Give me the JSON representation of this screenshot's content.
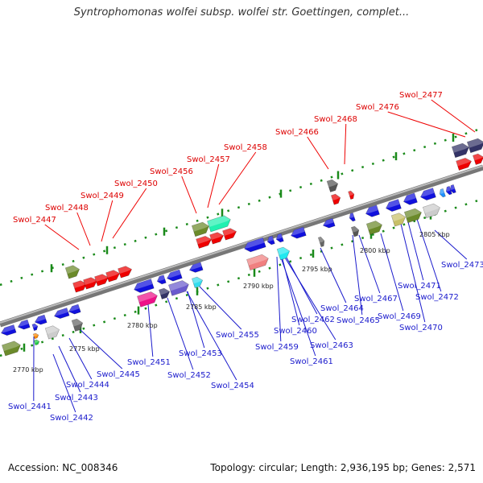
{
  "title": "Syntrophomonas wolfei subsp. wolfei str. Goettingen, complet...",
  "accession": "Accession: NC_008346",
  "topology": "Topology: circular; Length: 2,936,195 bp; Genes: 2,571",
  "colors": {
    "blue": "#1010dd",
    "red": "#ee0000",
    "olive": "#6b8a2a",
    "green_text_red": "#dd0000",
    "label_blue": "#1a1acc",
    "dot_green": "#1a8a1a"
  },
  "kbp_labels": [
    {
      "text": "2770 kbp",
      "kbp": 2770
    },
    {
      "text": "2775 kbp",
      "kbp": 2775
    },
    {
      "text": "2780 kbp",
      "kbp": 2780
    },
    {
      "text": "2785 kbp",
      "kbp": 2785
    },
    {
      "text": "2790 kbp",
      "kbp": 2790
    },
    {
      "text": "2795 kbp",
      "kbp": 2795
    },
    {
      "text": "2800 kbp",
      "kbp": 2800
    },
    {
      "text": "2805 kbp",
      "kbp": 2805
    }
  ],
  "top_labels": [
    {
      "text": "Swol_2447"
    },
    {
      "text": "Swol_2448"
    },
    {
      "text": "Swol_2449"
    },
    {
      "text": "Swol_2450"
    },
    {
      "text": "Swol_2456"
    },
    {
      "text": "Swol_2457"
    },
    {
      "text": "Swol_2458"
    },
    {
      "text": "Swol_2466"
    },
    {
      "text": "Swol_2468"
    },
    {
      "text": "Swol_2476"
    },
    {
      "text": "Swol_2477"
    }
  ],
  "bottom_labels": [
    {
      "text": "Swol_2441"
    },
    {
      "text": "Swol_2442"
    },
    {
      "text": "Swol_2443"
    },
    {
      "text": "Swol_2444"
    },
    {
      "text": "Swol_2445"
    },
    {
      "text": "Swol_2451"
    },
    {
      "text": "Swol_2452"
    },
    {
      "text": "Swol_2453"
    },
    {
      "text": "Swol_2454"
    },
    {
      "text": "Swol_2455"
    },
    {
      "text": "Swol_2459"
    },
    {
      "text": "Swol_2460"
    },
    {
      "text": "Swol_2461"
    },
    {
      "text": "Swol_2462"
    },
    {
      "text": "Swol_2463"
    },
    {
      "text": "Swol_2464"
    },
    {
      "text": "Swol_2465"
    },
    {
      "text": "Swol_2467"
    },
    {
      "text": "Swol_2469"
    },
    {
      "text": "Swol_2470"
    },
    {
      "text": "Swol_2471"
    },
    {
      "text": "Swol_2472"
    },
    {
      "text": "Swol_2473"
    }
  ]
}
